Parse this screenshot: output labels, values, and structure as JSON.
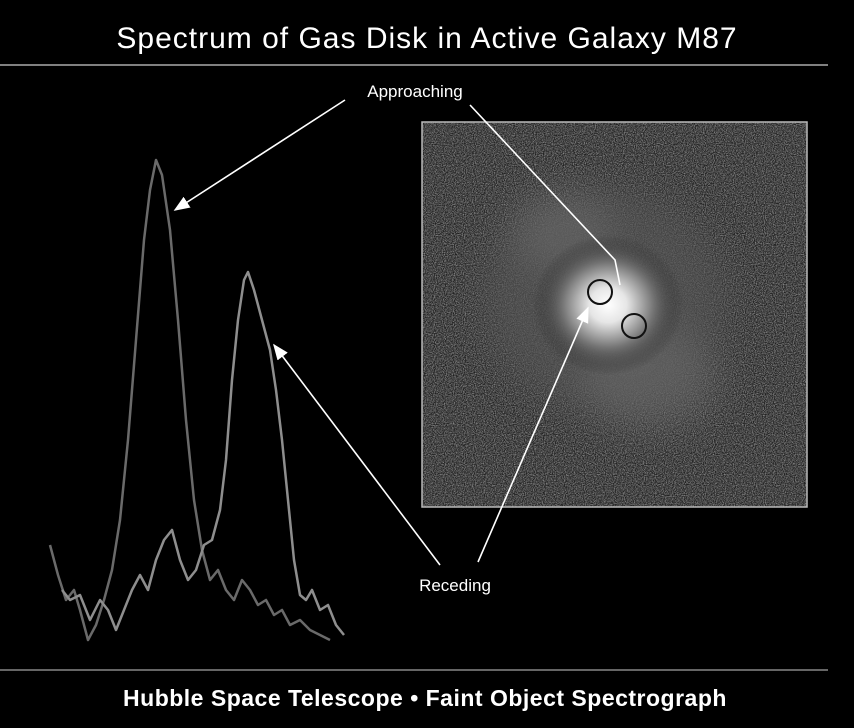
{
  "header": {
    "title": "Spectrum of Gas Disk in Active Galaxy M87"
  },
  "labels": {
    "approaching": "Approaching",
    "receding": "Receding"
  },
  "footer": {
    "text": "Hubble Space Telescope • Faint Object Spectrograph"
  }
}
